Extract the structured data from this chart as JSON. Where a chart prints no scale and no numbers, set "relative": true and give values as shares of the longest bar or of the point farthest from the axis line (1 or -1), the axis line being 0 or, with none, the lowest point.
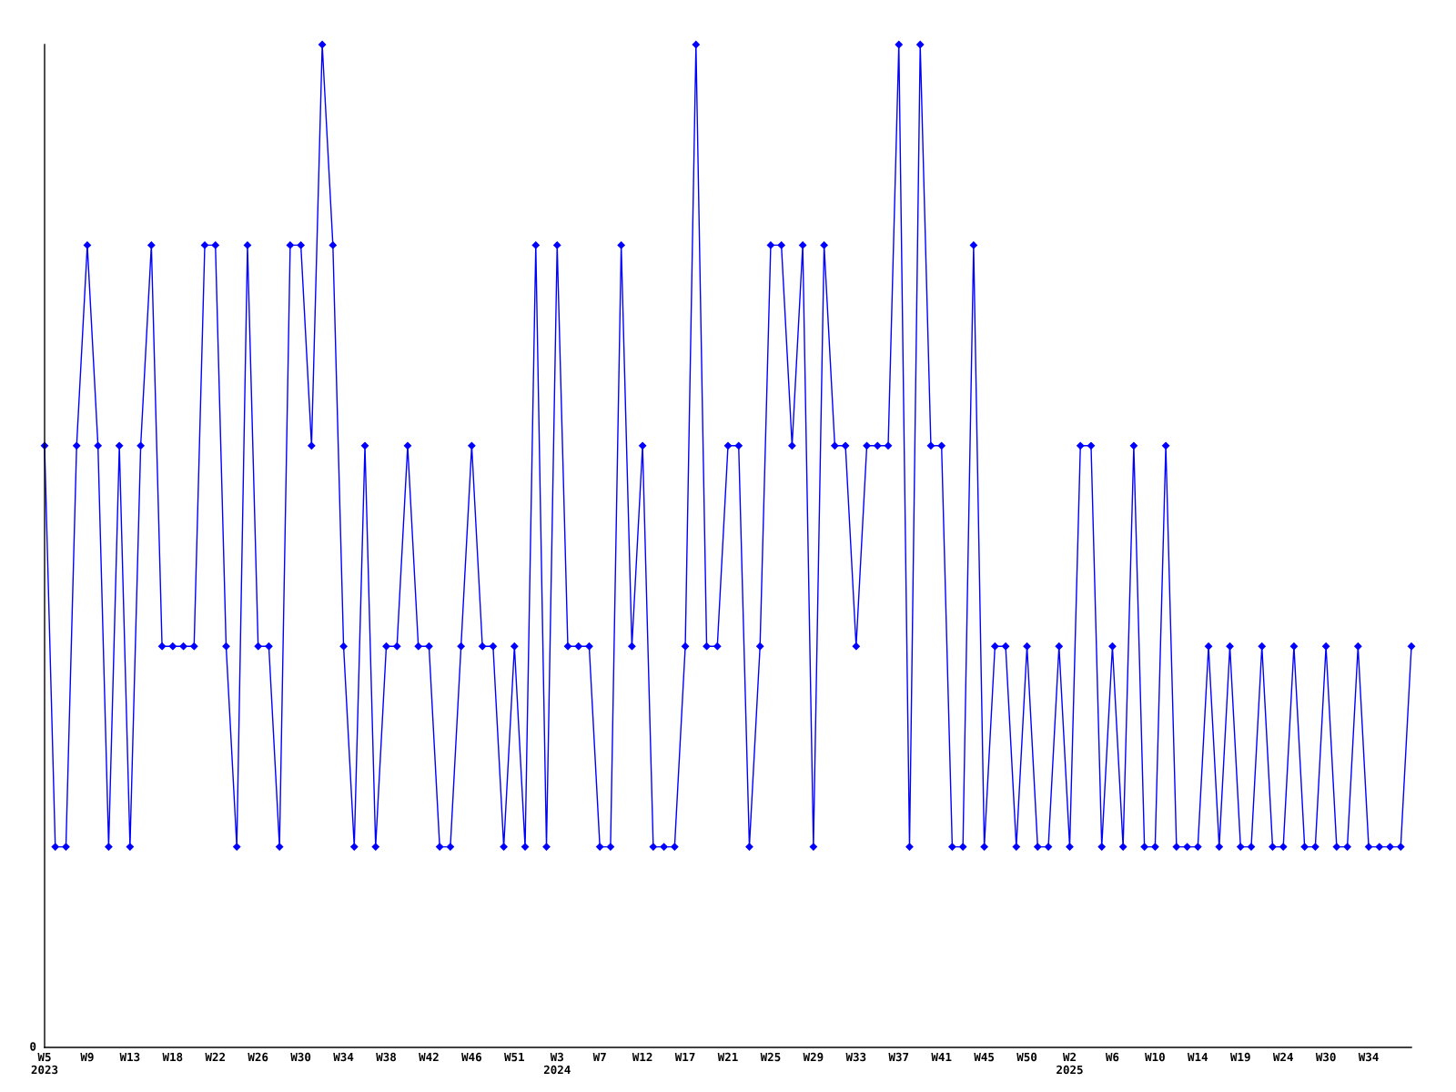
{
  "chart_data": {
    "type": "line",
    "relative": true,
    "marker": "diamond",
    "line_style": "solid",
    "grid": false,
    "categories": [
      "W5\n2023",
      null,
      null,
      null,
      "W9",
      null,
      null,
      null,
      "W13",
      null,
      null,
      null,
      "W18",
      null,
      null,
      null,
      "W22",
      null,
      null,
      null,
      "W26",
      null,
      null,
      null,
      "W30",
      null,
      null,
      null,
      "W34",
      null,
      null,
      null,
      "W38",
      null,
      null,
      null,
      "W42",
      null,
      null,
      null,
      "W46",
      null,
      null,
      null,
      "W51",
      null,
      null,
      null,
      "W3\n2024",
      null,
      null,
      null,
      "W7",
      null,
      null,
      null,
      "W12",
      null,
      null,
      null,
      "W17",
      null,
      null,
      null,
      "W21",
      null,
      null,
      null,
      "W25",
      null,
      null,
      null,
      "W29",
      null,
      null,
      null,
      "W33",
      null,
      null,
      null,
      "W37",
      null,
      null,
      null,
      "W41",
      null,
      null,
      null,
      "W45",
      null,
      null,
      null,
      "W50",
      null,
      null,
      null,
      "W2\n2025",
      null,
      null,
      null,
      "W6",
      null,
      null,
      null,
      "W10",
      null,
      null,
      null,
      "W14",
      null,
      null,
      null,
      "W19",
      null,
      null,
      null,
      "W24",
      null,
      null,
      null,
      "W30",
      null,
      null,
      null,
      "W34",
      null,
      null,
      null,
      null
    ],
    "series": [
      {
        "color": "#0000ff",
        "values": [
          0.6,
          0.2,
          0.2,
          0.6,
          0.8,
          0.6,
          0.2,
          0.6,
          0.2,
          0.6,
          0.8,
          0.4,
          0.4,
          0.4,
          0.4,
          0.8,
          0.8,
          0.4,
          0.2,
          0.8,
          0.4,
          0.4,
          0.2,
          0.8,
          0.8,
          0.6,
          1.0,
          0.8,
          0.4,
          0.2,
          0.6,
          0.2,
          0.4,
          0.4,
          0.6,
          0.4,
          0.4,
          0.2,
          0.2,
          0.4,
          0.6,
          0.4,
          0.4,
          0.2,
          0.4,
          0.2,
          0.8,
          0.2,
          0.8,
          0.4,
          0.4,
          0.4,
          0.2,
          0.2,
          0.8,
          0.4,
          0.6,
          0.2,
          0.2,
          0.2,
          0.4,
          1.0,
          0.4,
          0.4,
          0.6,
          0.6,
          0.2,
          0.4,
          0.8,
          0.8,
          0.6,
          0.8,
          0.2,
          0.8,
          0.6,
          0.6,
          0.4,
          0.6,
          0.6,
          0.6,
          1.0,
          0.2,
          1.0,
          0.6,
          0.6,
          0.2,
          0.2,
          0.8,
          0.2,
          0.4,
          0.4,
          0.2,
          0.4,
          0.2,
          0.2,
          0.4,
          0.2,
          0.6,
          0.6,
          0.2,
          0.4,
          0.2,
          0.6,
          0.2,
          0.2,
          0.6,
          0.2,
          0.2,
          0.2,
          0.4,
          0.2,
          0.4,
          0.2,
          0.2,
          0.4,
          0.2,
          0.2,
          0.4,
          0.2,
          0.2,
          0.4,
          0.2,
          0.2,
          0.4,
          0.2,
          0.2,
          0.2,
          0.2,
          0.4
        ]
      }
    ],
    "annotations": [
      "0"
    ]
  }
}
